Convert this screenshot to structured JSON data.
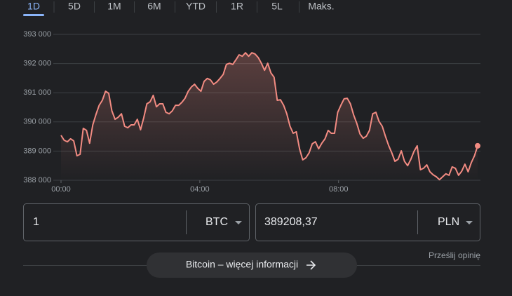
{
  "tabs": {
    "items": [
      "1D",
      "5D",
      "1M",
      "6M",
      "YTD",
      "1R",
      "5L",
      "Maks."
    ],
    "active": 0
  },
  "chart_data": {
    "type": "line",
    "color": "#f28b82",
    "grid": true,
    "x": [
      0,
      5.5,
      11,
      16.5,
      22,
      27.5,
      33,
      38.5,
      44,
      49.5,
      55,
      60.5,
      66,
      71.5,
      77,
      82.5,
      88,
      93.5,
      99,
      104.5,
      110,
      115.5,
      121,
      126.5,
      132,
      137.5,
      143,
      148.5,
      154,
      159.5,
      165,
      170.5,
      176,
      181.5,
      187,
      192.5,
      198,
      203.5,
      209,
      214.5,
      220,
      225.5,
      231,
      236.5,
      242,
      247.5,
      253,
      258.5,
      264,
      269.5,
      275,
      280.5,
      286,
      291.5,
      297,
      302.5,
      308,
      313.5,
      319,
      324.5,
      330,
      335.5,
      341,
      346.5,
      352,
      357.5,
      363,
      368.5,
      374,
      379.5,
      385,
      390.5,
      396,
      401.5,
      407,
      412.5,
      418,
      423.5,
      429,
      434.5,
      440,
      445.5,
      451,
      456.5,
      462,
      467.5,
      473,
      478.5,
      484,
      489.5,
      495,
      500.5,
      506,
      511.5,
      517,
      522.5,
      528,
      533.5,
      539,
      544.5,
      550,
      555.5,
      561,
      566.5,
      572,
      577.5,
      583,
      588.5,
      594,
      599.5,
      605,
      610.5,
      616,
      621.5,
      627,
      632.5,
      638,
      643.5,
      649,
      654.5,
      660,
      665.5,
      671,
      676.5,
      682,
      687.5,
      693,
      698.5,
      704,
      709.5,
      715,
      720.5
    ],
    "values": [
      389540,
      389370,
      389320,
      389420,
      389350,
      388840,
      388890,
      389780,
      389710,
      389270,
      389900,
      390260,
      390570,
      390740,
      391050,
      390980,
      390380,
      390090,
      390160,
      390280,
      389850,
      389800,
      389900,
      389900,
      390090,
      389730,
      390140,
      390620,
      390690,
      390910,
      390520,
      390620,
      390620,
      390330,
      390280,
      390380,
      390570,
      390570,
      390670,
      390810,
      391050,
      391200,
      391290,
      391150,
      391050,
      391390,
      391490,
      391440,
      391290,
      391370,
      391490,
      391630,
      391970,
      392010,
      391970,
      392130,
      392300,
      392250,
      392370,
      392250,
      392370,
      392330,
      392210,
      392010,
      391770,
      392010,
      391680,
      391530,
      390740,
      390760,
      390570,
      390280,
      389850,
      389610,
      389660,
      389080,
      388700,
      388770,
      388940,
      389250,
      389320,
      389080,
      389270,
      389420,
      389710,
      389610,
      389610,
      390330,
      390570,
      390790,
      390810,
      390620,
      390240,
      389950,
      389590,
      389440,
      389510,
      389710,
      390280,
      390330,
      390020,
      389850,
      389510,
      389200,
      388940,
      388650,
      388720,
      389010,
      388650,
      388500,
      388720,
      388990,
      389180,
      388360,
      388410,
      388530,
      388290,
      388190,
      388120,
      388020,
      388120,
      388220,
      388170,
      388460,
      388410,
      388170,
      388310,
      388550,
      388290,
      388600,
      388840,
      389180
    ],
    "xlim": [
      0,
      720.5
    ],
    "xticks": [
      {
        "value": 0,
        "label": "00:00"
      },
      {
        "value": 240,
        "label": "04:00"
      },
      {
        "value": 480,
        "label": "08:00"
      }
    ],
    "ylim": [
      388000,
      393000
    ],
    "yticks": [
      {
        "value": 388000,
        "label": "388 000"
      },
      {
        "value": 389000,
        "label": "389 000"
      },
      {
        "value": 390000,
        "label": "390 000"
      },
      {
        "value": 391000,
        "label": "391 000"
      },
      {
        "value": 392000,
        "label": "392 000"
      },
      {
        "value": 393000,
        "label": "393 000"
      }
    ]
  },
  "converter": {
    "amount": "1",
    "from": "BTC",
    "result": "389208,37",
    "to": "PLN"
  },
  "feedback": "Prześlij opinię",
  "more_button": "Bitcoin – więcej informacji"
}
